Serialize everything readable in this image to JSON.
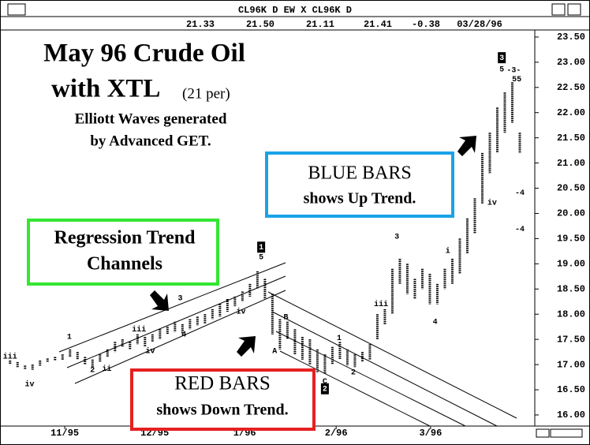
{
  "header": {
    "title": "CL96K D EW X CL96K D",
    "quotes": [
      "21.33",
      "21.50",
      "21.11",
      "21.41",
      "-0.38",
      "03/28/96"
    ]
  },
  "chart_data": {
    "type": "range-bar",
    "color": "#000000",
    "annotations": {
      "title_line1": "May 96 Crude Oil",
      "title_line2": "with XTL",
      "title_period": "(21 per)",
      "subtitle_line1": "Elliott Waves generated",
      "subtitle_line2": "by Advanced GET.",
      "blue_box_line1": "BLUE BARS",
      "blue_box_line2": "shows Up Trend.",
      "green_box_line1": "Regression Trend",
      "green_box_line2": "Channels",
      "red_box_line1": "RED BARS",
      "red_box_line2": "shows Down Trend."
    },
    "high": [
      17.08,
      17.05,
      16.98,
      17.0,
      17.08,
      17.12,
      17.15,
      17.2,
      17.3,
      17.25,
      17.15,
      17.1,
      17.2,
      17.3,
      17.45,
      17.5,
      17.45,
      17.6,
      17.55,
      17.6,
      17.7,
      17.75,
      17.85,
      17.8,
      17.9,
      17.95,
      18.0,
      18.1,
      18.2,
      18.3,
      18.35,
      18.45,
      18.6,
      18.85,
      18.7,
      18.4,
      17.9,
      17.85,
      17.7,
      17.55,
      17.5,
      17.3,
      17.2,
      17.35,
      17.45,
      17.3,
      17.2,
      17.25,
      17.4,
      18.0,
      18.1,
      18.9,
      19.1,
      19.0,
      18.7,
      18.9,
      18.8,
      18.6,
      18.9,
      19.1,
      19.5,
      19.9,
      20.3,
      21.2,
      21.6,
      22.1,
      22.4,
      22.6,
      21.6
    ],
    "low": [
      17.0,
      16.95,
      16.9,
      16.9,
      16.98,
      17.05,
      17.08,
      17.1,
      17.15,
      17.1,
      17.0,
      16.95,
      17.05,
      17.15,
      17.25,
      17.35,
      17.3,
      17.4,
      17.35,
      17.45,
      17.5,
      17.6,
      17.65,
      17.62,
      17.7,
      17.78,
      17.82,
      17.9,
      17.95,
      18.05,
      18.15,
      18.25,
      18.35,
      18.5,
      18.3,
      17.6,
      17.3,
      17.5,
      17.2,
      17.1,
      17.0,
      16.85,
      16.82,
      17.0,
      17.1,
      16.98,
      16.95,
      17.05,
      17.1,
      17.5,
      17.8,
      18.0,
      18.6,
      18.4,
      18.3,
      18.5,
      18.2,
      18.2,
      18.5,
      18.6,
      18.8,
      19.2,
      19.6,
      20.2,
      20.8,
      21.2,
      21.6,
      21.8,
      21.2
    ],
    "wave_labels": [
      {
        "label": "iii",
        "x": 0,
        "y": 17.16
      },
      {
        "label": "iv",
        "x": 2.6,
        "y": 16.61
      },
      {
        "label": "1",
        "x": 7.9,
        "y": 17.55
      },
      {
        "label": "2",
        "x": 11,
        "y": 16.89
      },
      {
        "label": "ii",
        "x": 12.9,
        "y": 16.92
      },
      {
        "label": "iii",
        "x": 17.2,
        "y": 17.7
      },
      {
        "label": "iv",
        "x": 18.7,
        "y": 17.27
      },
      {
        "label": "3",
        "x": 22.7,
        "y": 18.32
      },
      {
        "label": "4",
        "x": 23.2,
        "y": 17.6
      },
      {
        "label": "iv",
        "x": 30.8,
        "y": 18.05
      },
      {
        "label": "5",
        "x": 33.5,
        "y": 19.13
      },
      {
        "label": "A",
        "x": 35.3,
        "y": 17.27
      },
      {
        "label": "B",
        "x": 36.8,
        "y": 17.94
      },
      {
        "label": "C",
        "x": 42,
        "y": 16.67
      },
      {
        "label": "1",
        "x": 43.9,
        "y": 17.53
      },
      {
        "label": "2",
        "x": 45.8,
        "y": 16.85
      },
      {
        "label": "iii",
        "x": 49.5,
        "y": 18.2
      },
      {
        "label": "3",
        "x": 51.6,
        "y": 19.54
      },
      {
        "label": "4",
        "x": 56.7,
        "y": 17.85
      },
      {
        "label": "i",
        "x": 58.4,
        "y": 19.26
      },
      {
        "label": "iv",
        "x": 64.3,
        "y": 20.21
      },
      {
        "label": "5",
        "x": 65.6,
        "y": 22.86
      },
      {
        "label": "-3-",
        "x": 67.2,
        "y": 22.84
      },
      {
        "label": "55",
        "x": 67.6,
        "y": 22.66
      },
      {
        "label": "-4",
        "x": 68,
        "y": 20.41
      },
      {
        "label": "-4",
        "x": 68,
        "y": 19.69
      }
    ],
    "boxed_labels": [
      {
        "label": "1",
        "x": 33.5,
        "y": 19.33
      },
      {
        "label": "2",
        "x": 42,
        "y": 16.52
      },
      {
        "label": "3",
        "x": 65.6,
        "y": 23.09
      }
    ],
    "xlim": [
      -0.5,
      70
    ],
    "ylim": [
      15.78,
      23.64
    ],
    "xticks": [
      {
        "value": 7.3,
        "label": "11/95"
      },
      {
        "value": 19.3,
        "label": "12/95"
      },
      {
        "value": 31.3,
        "label": "1/96"
      },
      {
        "value": 43.5,
        "label": "2/96"
      },
      {
        "value": 56.1,
        "label": "3/96"
      }
    ],
    "yticks": [
      {
        "value": 16,
        "label": "16.00"
      },
      {
        "value": 16.5,
        "label": "16.50"
      },
      {
        "value": 17,
        "label": "17.00"
      },
      {
        "value": 17.5,
        "label": "17.50"
      },
      {
        "value": 18,
        "label": "18.00"
      },
      {
        "value": 18.5,
        "label": "18.50"
      },
      {
        "value": 19,
        "label": "19.00"
      },
      {
        "value": 19.5,
        "label": "19.50"
      },
      {
        "value": 20,
        "label": "20.00"
      },
      {
        "value": 20.5,
        "label": "20.50"
      },
      {
        "value": 21,
        "label": "21.00"
      },
      {
        "value": 21.5,
        "label": "21.50"
      },
      {
        "value": 22,
        "label": "22.00"
      },
      {
        "value": 22.5,
        "label": "22.50"
      },
      {
        "value": 23,
        "label": "23.00"
      },
      {
        "value": 23.5,
        "label": "23.50"
      }
    ]
  }
}
